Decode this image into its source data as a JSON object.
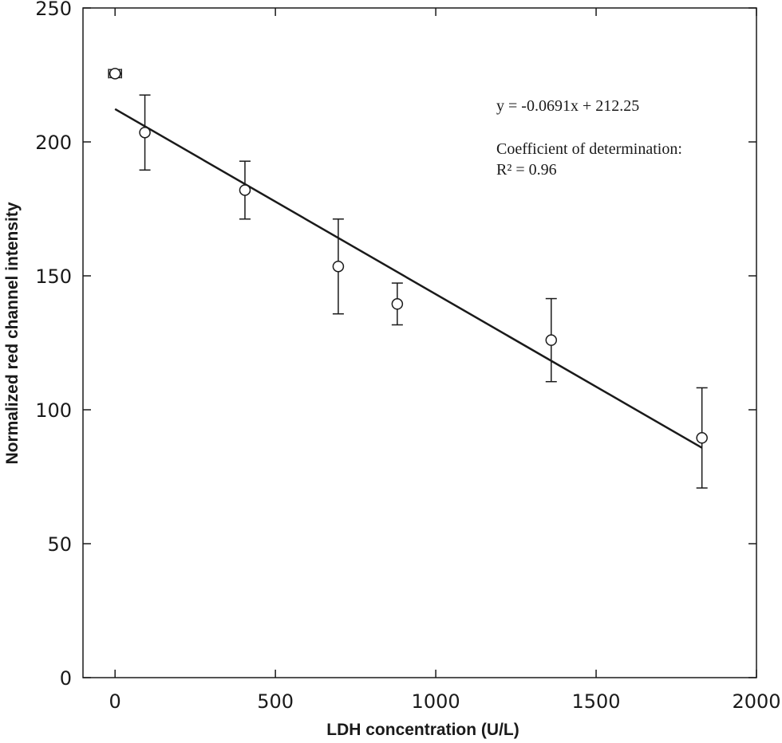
{
  "chart_data": {
    "type": "scatter",
    "xlabel": "LDH concentration (U/L)",
    "ylabel": "Normalized red channel intensity",
    "xlim": [
      -100,
      2000
    ],
    "ylim": [
      0,
      250
    ],
    "x_ticks": [
      0,
      500,
      1000,
      1500,
      2000
    ],
    "y_ticks": [
      0,
      50,
      100,
      150,
      200,
      250
    ],
    "grid": false,
    "points": [
      {
        "x": 0,
        "y": 225.5,
        "err": 1.5,
        "xerr": 20
      },
      {
        "x": 93,
        "y": 203.5,
        "err": 14
      },
      {
        "x": 405,
        "y": 182,
        "err": 10.8
      },
      {
        "x": 696,
        "y": 153.5,
        "err": 17.7
      },
      {
        "x": 880,
        "y": 139.5,
        "err": 7.8
      },
      {
        "x": 1360,
        "y": 126,
        "err": 15.5
      },
      {
        "x": 1830,
        "y": 89.5,
        "err": 18.7
      }
    ],
    "fit": {
      "slope": -0.0691,
      "intercept": 212.25,
      "x_range": [
        0,
        1830
      ]
    },
    "annotations": {
      "equation": "y = -0.0691x + 212.25",
      "r2_label": "Coefficient of determination:",
      "r2_value": "R² = 0.96"
    }
  }
}
